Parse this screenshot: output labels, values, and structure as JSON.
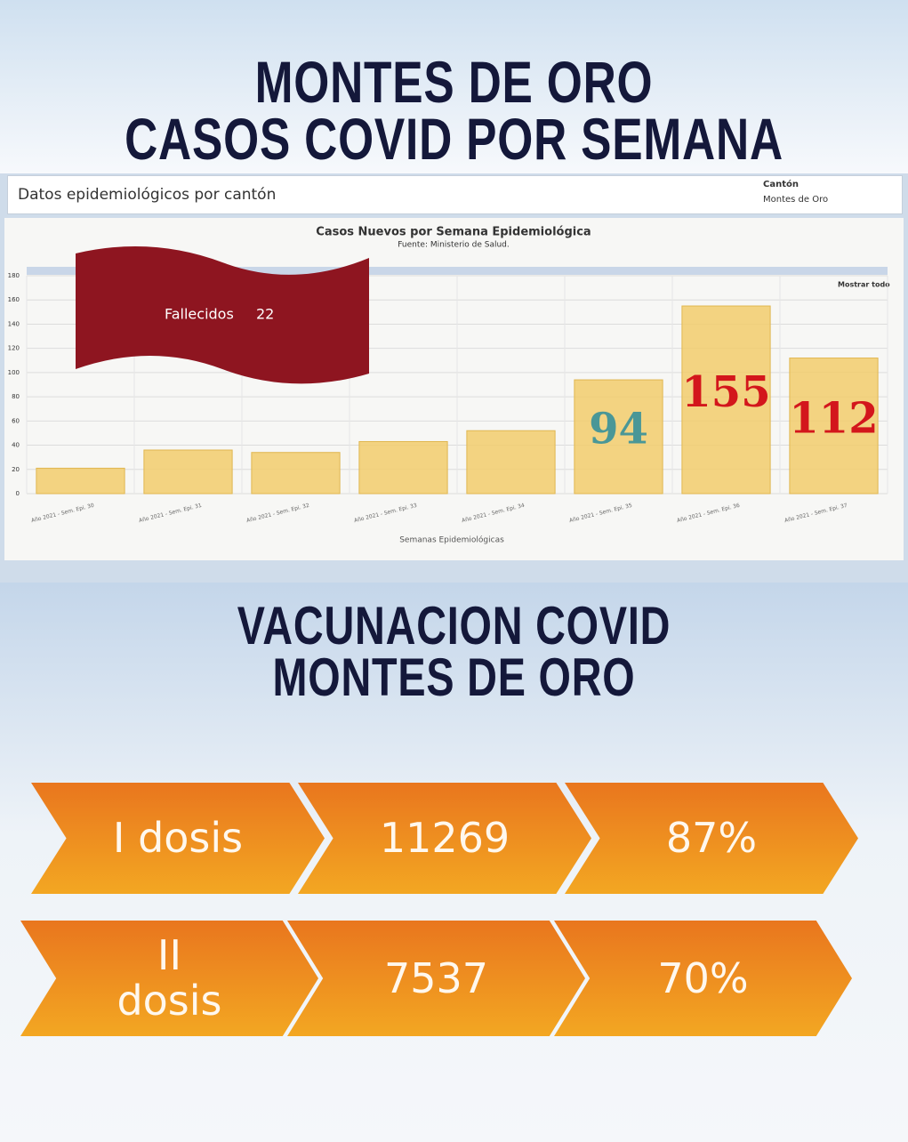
{
  "header": {
    "title_lines": [
      "MONTES DE ORO",
      "CASOS COVID POR SEMANA"
    ],
    "filter_label": "Datos epidemiológicos por cantón",
    "canton_label": "Cantón",
    "canton_value": "Montes de Oro"
  },
  "chart_data": {
    "type": "bar",
    "title": "Casos Nuevos por Semana Epidemiológica",
    "subtitle": "Fuente: Ministerio de Salud.",
    "x_label": "Semanas Epidemiológicas",
    "zoom_label": "Mostrar todo",
    "categories": [
      "Año 2021 - Sem. Epi. 30",
      "Año 2021 - Sem. Epi. 31",
      "Año 2021 - Sem. Epi. 32",
      "Año 2021 - Sem. Epi. 33",
      "Año 2021 - Sem. Epi. 34",
      "Año 2021 - Sem. Epi. 35",
      "Año 2021 - Sem. Epi. 36",
      "Año 2021 - Sem. Epi. 37"
    ],
    "values": [
      21,
      36,
      34,
      43,
      52,
      94,
      155,
      112
    ],
    "value_labels": [
      null,
      null,
      null,
      null,
      null,
      "94",
      "155",
      "112"
    ],
    "value_label_colors": [
      null,
      null,
      null,
      null,
      null,
      "#4a9797",
      "#d3161c",
      "#d3161c"
    ],
    "color": "#f2cd6c",
    "ylim": [
      0,
      180
    ],
    "yticks": [
      0,
      20,
      40,
      60,
      80,
      100,
      120,
      140,
      160,
      180
    ],
    "grid": true
  },
  "banner": {
    "label": "Fallecidos",
    "value": "22"
  },
  "vaccination": {
    "title_lines": [
      "VACUNACION COVID",
      "MONTES DE ORO"
    ],
    "rows": [
      [
        "I dosis",
        "11269",
        "87%"
      ],
      [
        "II\ndosis",
        "7537",
        "70%"
      ]
    ]
  }
}
